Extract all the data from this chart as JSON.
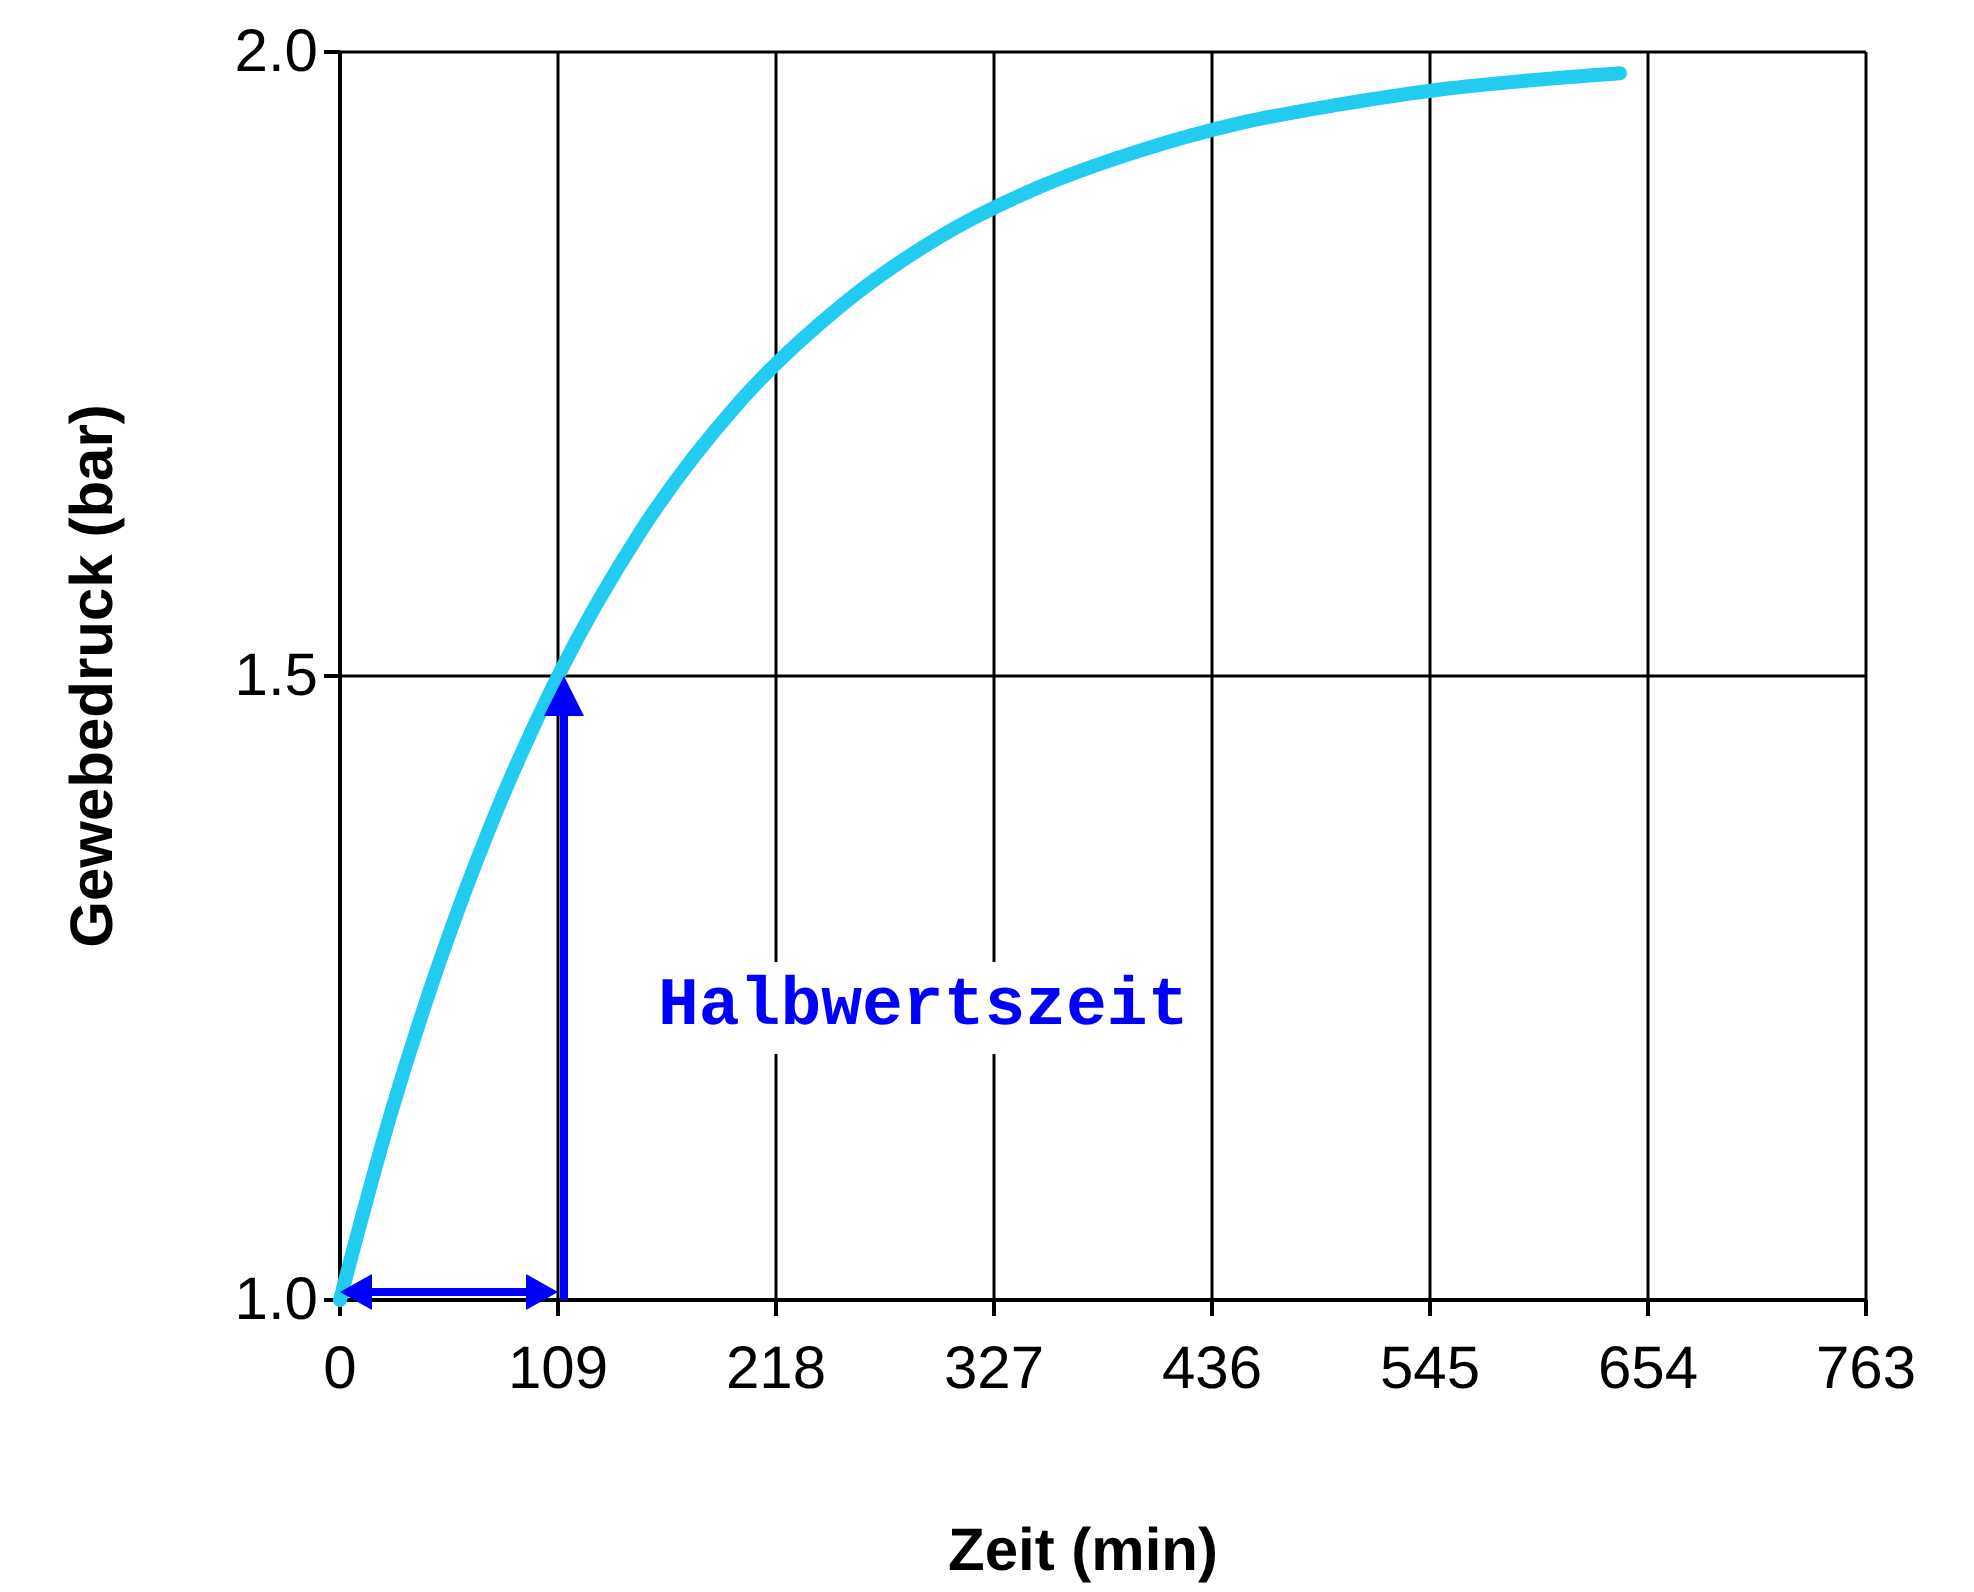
{
  "chart_data": {
    "type": "line",
    "xlabel": "Zeit (min)",
    "ylabel": "Gewebedruck (bar)",
    "x": [
      0,
      25,
      50,
      75,
      109,
      150,
      200,
      250,
      300,
      350,
      400,
      450,
      500,
      550,
      600,
      640
    ],
    "series": [
      {
        "color": "#22ccf0",
        "values": [
          1.0,
          1.147,
          1.272,
          1.379,
          1.5,
          1.615,
          1.72,
          1.796,
          1.852,
          1.892,
          1.921,
          1.943,
          1.958,
          1.97,
          1.978,
          1.983
        ]
      }
    ],
    "xlim": [
      0,
      763
    ],
    "xticks": [
      0,
      109,
      218,
      327,
      436,
      545,
      654,
      763
    ],
    "ylim": [
      1.0,
      2.0
    ],
    "yticks": [
      {
        "value": 1.0,
        "label": "1.0"
      },
      {
        "value": 1.5,
        "label": "1.5"
      },
      {
        "value": 2.0,
        "label": "2.0"
      }
    ],
    "grid": true,
    "marker": "none",
    "line_style": "solid",
    "annotations": [
      "Halbwertszeit"
    ]
  }
}
